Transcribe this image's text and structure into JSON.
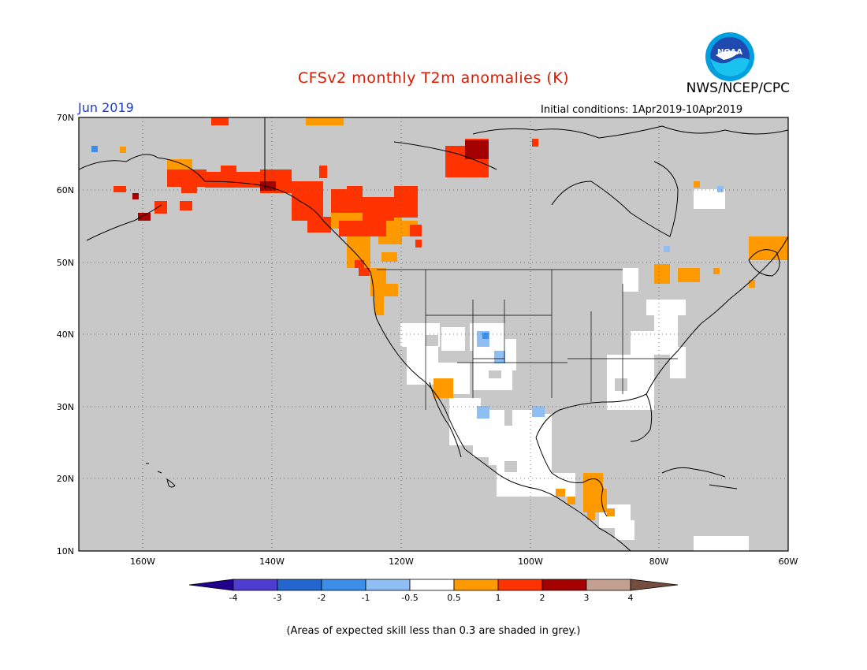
{
  "title": "CFSv2 monthly T2m anomalies (K)",
  "agency": "NWS/NCEP/CPC",
  "logo_text": "NOAA",
  "valid_month": "Jun 2019",
  "initial_conditions": "Initial conditions: 1Apr2019-10Apr2019",
  "map": {
    "lat_labels": [
      "70N",
      "60N",
      "50N",
      "40N",
      "30N",
      "20N",
      "10N"
    ],
    "lon_labels": [
      "160W",
      "140W",
      "120W",
      "100W",
      "80W",
      "60W"
    ],
    "lon_range": [
      -171,
      -60
    ],
    "lat_range": [
      10,
      70
    ],
    "background_color": "#c8c8c8",
    "grid": true
  },
  "colorbar": {
    "labels": [
      "-4",
      "-3",
      "-2",
      "-1",
      "-0.5",
      "0.5",
      "1",
      "2",
      "3",
      "4"
    ],
    "colors": [
      "#21008e",
      "#4c3ccf",
      "#2366cf",
      "#3d8ee9",
      "#8fbff2",
      "#ffffff",
      "#ff9900",
      "#ff3300",
      "#a50000",
      "#c4a090",
      "#754d3e"
    ]
  },
  "footnote": "(Areas of expected skill less than 0.3 are shaded in grey.)",
  "anomaly_regions": [
    {
      "name": "Alaska south coast",
      "level": "1-2 K"
    },
    {
      "name": "Pacific Northwest / Western Canada",
      "level": "0.5-2 K"
    },
    {
      "name": "Northwest Territories",
      "level": "2-3 K"
    },
    {
      "name": "Southwest US / Mexico",
      "level": "-0.5 to 0.5 K"
    },
    {
      "name": "Eastern US",
      "level": "-0.5 to 0.5 K"
    },
    {
      "name": "Central America",
      "level": "0.5-1 K"
    },
    {
      "name": "Eastern Canada",
      "level": "0.5-1 K"
    }
  ]
}
